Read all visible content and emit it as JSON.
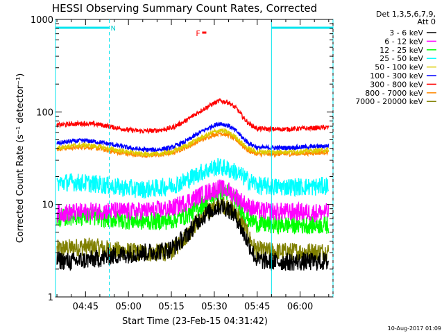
{
  "chart_data": {
    "type": "line",
    "title": "HESSI Observing Summary Count Rates, Corrected",
    "xlabel": "Start Time (23-Feb-15 04:31:42)",
    "ylabel": "Corrected Count Rate (s⁻¹ detector⁻¹)",
    "y_scale": "log",
    "ylim": [
      1,
      1000
    ],
    "xlim_minutes": [
      4.5,
      101.5
    ],
    "x_ticks": [
      {
        "m": 15,
        "label": "04:45"
      },
      {
        "m": 30,
        "label": "05:00"
      },
      {
        "m": 45,
        "label": "05:15"
      },
      {
        "m": 60,
        "label": "05:30"
      },
      {
        "m": 75,
        "label": "05:45"
      },
      {
        "m": 90,
        "label": "06:00"
      }
    ],
    "y_ticks": [
      {
        "v": 1,
        "label": "1"
      },
      {
        "v": 10,
        "label": "10"
      },
      {
        "v": 100,
        "label": "100"
      },
      {
        "v": 1000,
        "label": "1000"
      }
    ],
    "legend_title": [
      "Det 1,3,5,6,7,9,",
      "Att 0"
    ],
    "legend_position": "right",
    "series": [
      {
        "name": "3 - 6 keV",
        "color": "#000000",
        "x": [
          5,
          10,
          15,
          20,
          25,
          30,
          35,
          40,
          45,
          50,
          55,
          60,
          62,
          65,
          68,
          70,
          72,
          74,
          75,
          80,
          85,
          90,
          95,
          100
        ],
        "y": [
          2.5,
          2.4,
          2.5,
          2.6,
          2.8,
          2.9,
          3.0,
          3.1,
          3.3,
          4.5,
          7.0,
          9.0,
          9.6,
          9.0,
          7.0,
          5.0,
          3.8,
          2.8,
          2.5,
          2.4,
          2.4,
          2.4,
          2.4,
          2.4
        ]
      },
      {
        "name": "6 - 12 keV",
        "color": "#ff00ff",
        "x": [
          5,
          10,
          15,
          20,
          25,
          30,
          35,
          40,
          45,
          50,
          55,
          60,
          62,
          65,
          68,
          70,
          72,
          74,
          75,
          80,
          85,
          90,
          95,
          100
        ],
        "y": [
          8.0,
          8.2,
          8.3,
          8.5,
          8.5,
          8.4,
          8.5,
          8.7,
          9.0,
          10.5,
          12.5,
          14.5,
          15.0,
          14.0,
          12.0,
          10.5,
          9.5,
          9.0,
          8.6,
          8.4,
          8.3,
          8.3,
          8.2,
          8.2
        ]
      },
      {
        "name": "12 - 25 keV",
        "color": "#00ff00",
        "x": [
          5,
          10,
          15,
          20,
          25,
          30,
          35,
          40,
          45,
          50,
          55,
          60,
          62,
          65,
          68,
          70,
          72,
          74,
          75,
          80,
          85,
          90,
          95,
          100
        ],
        "y": [
          7.0,
          7.4,
          7.5,
          7.2,
          6.9,
          6.7,
          6.6,
          6.6,
          6.7,
          7.5,
          9.5,
          13.0,
          14.0,
          13.5,
          11.0,
          8.5,
          7.0,
          6.5,
          6.2,
          6.0,
          6.0,
          6.0,
          6.0,
          6.0
        ]
      },
      {
        "name": "25 - 50 keV",
        "color": "#00ffff",
        "x": [
          5,
          10,
          15,
          20,
          25,
          30,
          35,
          40,
          45,
          50,
          55,
          60,
          62,
          65,
          68,
          70,
          72,
          74,
          75,
          80,
          85,
          90,
          95,
          100
        ],
        "y": [
          17,
          17.5,
          17,
          16.5,
          15.5,
          15,
          14.5,
          15,
          16,
          18,
          22,
          25,
          25.5,
          24,
          22,
          20,
          18,
          17,
          16,
          15.5,
          15.5,
          15.5,
          15.5,
          16
        ]
      },
      {
        "name": "50 - 100 keV",
        "color": "#ddcc00",
        "x": [
          5,
          10,
          15,
          20,
          25,
          30,
          35,
          40,
          45,
          50,
          55,
          60,
          62,
          65,
          68,
          70,
          72,
          74,
          75,
          80,
          85,
          90,
          95,
          100
        ],
        "y": [
          41,
          43,
          44,
          42,
          39,
          37,
          35,
          35,
          37,
          43,
          52,
          61,
          63,
          60,
          52,
          45,
          40,
          38,
          37,
          37,
          37,
          37.5,
          38,
          39
        ]
      },
      {
        "name": "100 - 300 keV",
        "color": "#0000ff",
        "x": [
          5,
          10,
          15,
          20,
          25,
          30,
          35,
          40,
          45,
          50,
          55,
          60,
          62,
          65,
          68,
          70,
          72,
          74,
          75,
          80,
          85,
          90,
          95,
          100
        ],
        "y": [
          46,
          48,
          49,
          47,
          44,
          41,
          39,
          39,
          41,
          48,
          60,
          72,
          75,
          71,
          61,
          52,
          46,
          43,
          41,
          41,
          41,
          41.5,
          42,
          43
        ]
      },
      {
        "name": "300 - 800 keV",
        "color": "#ff0000",
        "x": [
          5,
          10,
          15,
          20,
          25,
          30,
          35,
          40,
          45,
          50,
          55,
          60,
          62,
          65,
          68,
          70,
          72,
          74,
          75,
          80,
          85,
          90,
          95,
          100
        ],
        "y": [
          72,
          74,
          75,
          73,
          68,
          64,
          62,
          63,
          67,
          80,
          102,
          125,
          132,
          127,
          107,
          88,
          75,
          69,
          66,
          65,
          65,
          66,
          67,
          68
        ]
      },
      {
        "name": "800 - 7000 keV",
        "color": "#ff8800",
        "x": [
          5,
          10,
          15,
          20,
          25,
          30,
          35,
          40,
          45,
          50,
          55,
          60,
          62,
          65,
          68,
          70,
          72,
          74,
          75,
          80,
          85,
          90,
          95,
          100
        ],
        "y": [
          40,
          41,
          42,
          40,
          37,
          35,
          34,
          34,
          36,
          41,
          49,
          57,
          59,
          56,
          49,
          43,
          38,
          36,
          35,
          35,
          35,
          35.5,
          36,
          37
        ]
      },
      {
        "name": "7000 - 20000 keV",
        "color": "#808000",
        "x": [
          5,
          10,
          15,
          20,
          25,
          30,
          35,
          40,
          45,
          50,
          55,
          60,
          62,
          65,
          68,
          70,
          72,
          74,
          75,
          80,
          85,
          90,
          95,
          100
        ],
        "y": [
          3.3,
          3.4,
          3.5,
          3.4,
          3.2,
          3.1,
          3.0,
          3.0,
          3.1,
          4.5,
          7.0,
          9.5,
          10.0,
          9.5,
          8.0,
          6.5,
          4.5,
          3.4,
          3.2,
          3.1,
          3.1,
          3.1,
          3.1,
          3.1
        ]
      }
    ],
    "night_intervals": [
      [
        4.5,
        23.3
      ],
      [
        80.0,
        101.5
      ]
    ],
    "night_marker_label": "N",
    "flare_marker": {
      "label": "F",
      "x_min": 56.5
    },
    "vertical_lines_min": [
      4.5,
      23.3,
      80.0,
      101.5
    ],
    "timestamp": "10-Aug-2017 01:09"
  }
}
